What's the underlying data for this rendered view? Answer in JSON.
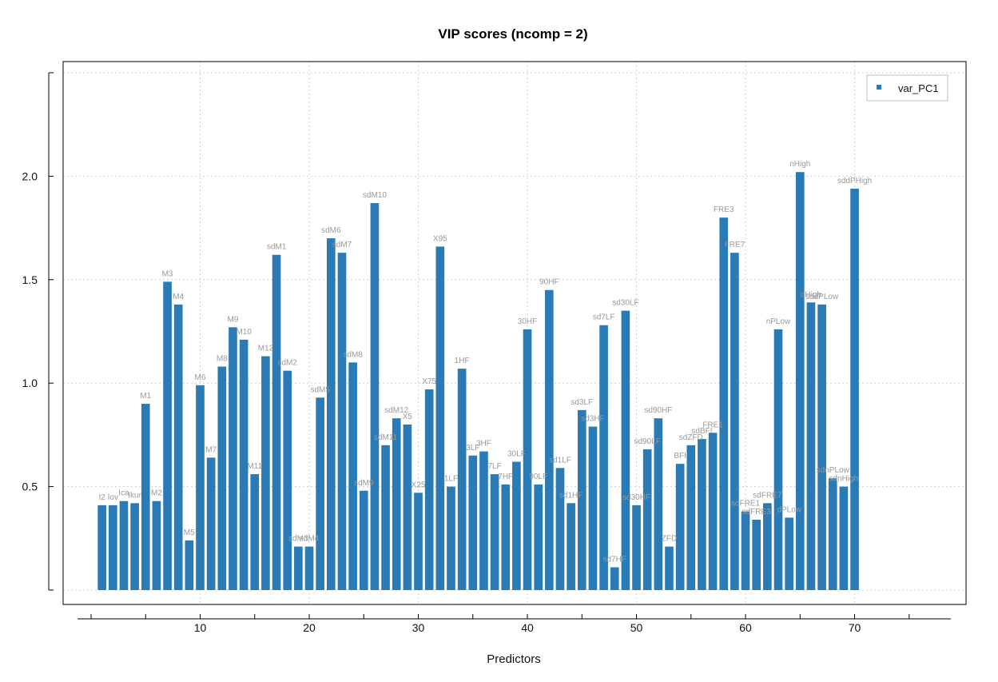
{
  "chart_data": {
    "type": "bar",
    "title": "VIP scores (ncomp = 2)",
    "xlabel": "Predictors",
    "ylabel": "",
    "xlim": [
      -2,
      78
    ],
    "ylim": [
      0,
      2.5
    ],
    "x_ticks": [
      10,
      20,
      30,
      40,
      50,
      60,
      70
    ],
    "y_ticks": [
      0.5,
      1.0,
      1.5,
      2.0
    ],
    "y_tick_labels": [
      "0.5",
      "1.0",
      "1.5",
      "2.0"
    ],
    "grid": true,
    "legend_position": "top-right",
    "series": [
      {
        "name": "var_PC1",
        "color": "#2a7ab5",
        "x": [
          1,
          2,
          3,
          4,
          5,
          6,
          7,
          8,
          9,
          10,
          11,
          12,
          13,
          14,
          15,
          16,
          17,
          18,
          19,
          20,
          21,
          22,
          23,
          24,
          25,
          26,
          27,
          28,
          29,
          30,
          31,
          32,
          33,
          34,
          35,
          36,
          37,
          38,
          39,
          40,
          41,
          42,
          43,
          44,
          45,
          46,
          47,
          48,
          49,
          50,
          51,
          52,
          53,
          54,
          55,
          56,
          57,
          58,
          59,
          60,
          61,
          62,
          63,
          64,
          65,
          66,
          67,
          68,
          69,
          70
        ],
        "values": [
          0.41,
          0.41,
          0.43,
          0.42,
          0.9,
          0.43,
          1.49,
          1.38,
          0.24,
          0.99,
          0.64,
          1.08,
          1.27,
          1.21,
          0.56,
          1.13,
          1.62,
          1.06,
          0.21,
          0.21,
          0.93,
          1.7,
          1.63,
          1.1,
          0.48,
          1.87,
          0.7,
          0.83,
          0.8,
          0.47,
          0.97,
          1.66,
          0.5,
          1.07,
          0.65,
          0.67,
          0.56,
          0.51,
          0.62,
          1.26,
          0.51,
          1.45,
          0.59,
          0.42,
          0.87,
          0.79,
          1.28,
          0.11,
          1.35,
          0.41,
          0.68,
          0.83,
          0.21,
          0.61,
          0.7,
          0.73,
          0.76,
          1.8,
          1.63,
          0.38,
          0.34,
          0.42,
          1.26,
          0.35,
          2.02,
          1.39,
          1.38,
          0.54,
          0.5,
          1.94
        ],
        "labels": [
          "I2",
          "Iov",
          "Ica",
          "Ikur",
          "M1",
          "M2",
          "M3",
          "M4",
          "M5",
          "M6",
          "M7",
          "M8",
          "M9",
          "M10",
          "M11",
          "M12",
          "sdM1",
          "sdM2",
          "sdM3",
          "sdM4",
          "sdM5",
          "sdM6",
          "sdM7",
          "sdM8",
          "sdM9",
          "sdM10",
          "sdM11",
          "sdM12",
          "X5",
          "X25",
          "X75",
          "X95",
          "1LF",
          "1HF",
          "3LF",
          "3HF",
          "7LF",
          "7HF",
          "30LF",
          "30HF",
          "90LF",
          "90HF",
          "sd1LF",
          "sd1HF",
          "sd3LF",
          "sd3HF",
          "sd7LF",
          "sd7HF",
          "sd30LF",
          "sd30HF",
          "sd90LF",
          "sd90HF",
          "ZFD",
          "BFI",
          "sdZFD",
          "sdBFI",
          "FRE1",
          "FRE3",
          "FRE7",
          "sdFRE1",
          "sdFRE3",
          "sdFRE7",
          "nPLow",
          "dPLow",
          "nHigh",
          "dHigh",
          "sddPLow",
          "sdnPLow",
          "sdnHigh",
          "sddPHigh"
        ]
      }
    ]
  }
}
